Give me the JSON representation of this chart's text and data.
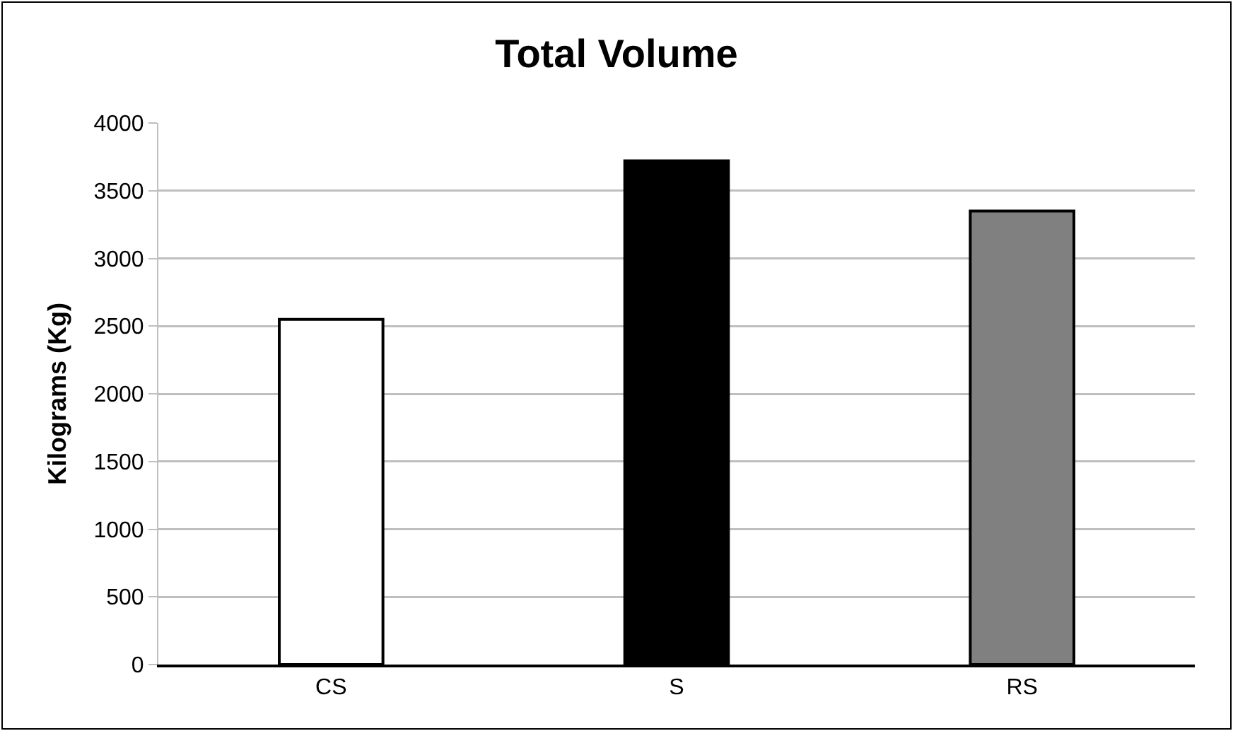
{
  "chart_data": {
    "type": "bar",
    "title": "Total Volume",
    "ylabel": "Kilograms (Kg)",
    "categories": [
      "CS",
      "S",
      "RS"
    ],
    "values": [
      2550,
      3720,
      3350
    ],
    "colors": [
      "#ffffff",
      "#000000",
      "#808080"
    ],
    "ylim": [
      0,
      4000
    ],
    "yticks": [
      0,
      500,
      1000,
      1500,
      2000,
      2500,
      3000,
      3500,
      4000
    ],
    "grid": "y",
    "legend": false
  }
}
